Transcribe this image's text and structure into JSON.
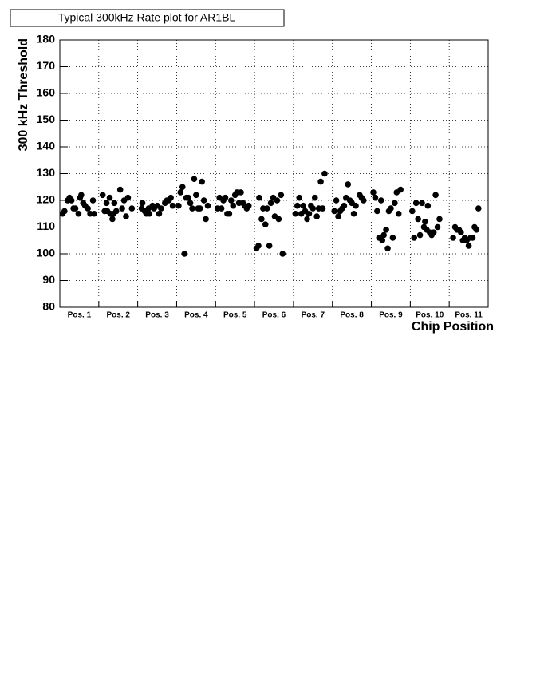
{
  "chart_data": {
    "type": "scatter",
    "title": "Typical 300kHz Rate plot for AR1BL",
    "x_label": "Chip Position",
    "y_label": "300 kHz Threshold",
    "categories": [
      "Pos. 1",
      "Pos. 2",
      "Pos. 3",
      "Pos. 4",
      "Pos. 5",
      "Pos. 6",
      "Pos. 7",
      "Pos. 8",
      "Pos. 9",
      "Pos. 10",
      "Pos. 11"
    ],
    "xlim": [
      0,
      11
    ],
    "ylim": [
      80,
      180
    ],
    "yticks": [
      80,
      90,
      100,
      110,
      120,
      130,
      140,
      150,
      160,
      170,
      180
    ],
    "grid": true,
    "series": [
      {
        "color": "#000000",
        "x": [
          0.07,
          0.12,
          0.2,
          0.25,
          0.3,
          0.35,
          0.4,
          0.48,
          0.52,
          0.55,
          0.6,
          0.65,
          0.72,
          0.78,
          0.85,
          0.88,
          1.1,
          1.15,
          1.2,
          1.22,
          1.28,
          1.3,
          1.35,
          1.38,
          1.4,
          1.45,
          1.55,
          1.6,
          1.65,
          1.7,
          1.75,
          1.85,
          2.1,
          2.12,
          2.18,
          2.22,
          2.28,
          2.3,
          2.38,
          2.42,
          2.5,
          2.55,
          2.6,
          2.7,
          2.75,
          2.8,
          2.85,
          2.9,
          3.05,
          3.1,
          3.15,
          3.2,
          3.25,
          3.3,
          3.35,
          3.4,
          3.45,
          3.5,
          3.55,
          3.6,
          3.65,
          3.7,
          3.75,
          3.8,
          4.05,
          4.1,
          4.15,
          4.2,
          4.25,
          4.3,
          4.35,
          4.4,
          4.45,
          4.5,
          4.55,
          4.6,
          4.65,
          4.7,
          4.75,
          4.8,
          4.85,
          5.05,
          5.1,
          5.12,
          5.18,
          5.22,
          5.28,
          5.32,
          5.38,
          5.42,
          5.48,
          5.52,
          5.58,
          5.62,
          5.68,
          5.72,
          6.05,
          6.1,
          6.15,
          6.2,
          6.25,
          6.3,
          6.35,
          6.4,
          6.45,
          6.5,
          6.55,
          6.6,
          6.65,
          6.7,
          6.75,
          6.8,
          7.05,
          7.1,
          7.15,
          7.2,
          7.25,
          7.3,
          7.35,
          7.4,
          7.45,
          7.5,
          7.55,
          7.6,
          7.7,
          7.75,
          7.8,
          8.05,
          8.1,
          8.15,
          8.2,
          8.25,
          8.28,
          8.32,
          8.38,
          8.42,
          8.45,
          8.5,
          8.55,
          8.6,
          8.65,
          8.7,
          8.75,
          9.05,
          9.1,
          9.15,
          9.2,
          9.25,
          9.3,
          9.35,
          9.38,
          9.42,
          9.45,
          9.5,
          9.55,
          9.6,
          9.65,
          9.7,
          9.75,
          10.1,
          10.15,
          10.2,
          10.25,
          10.3,
          10.35,
          10.4,
          10.45,
          10.5,
          10.55,
          10.6,
          10.65,
          10.7,
          10.75
        ],
        "values": [
          115,
          116,
          120,
          121,
          120,
          117,
          117,
          115,
          121,
          122,
          119,
          118,
          117,
          115,
          120,
          115,
          122,
          116,
          119,
          116,
          121,
          115,
          113,
          115,
          119,
          116,
          124,
          117,
          120,
          114,
          121,
          117,
          117,
          119,
          116,
          115,
          117,
          115,
          118,
          117,
          118,
          115,
          117,
          119,
          120,
          120,
          121,
          118,
          118,
          123,
          125,
          100,
          121,
          121,
          119,
          117,
          128,
          122,
          117,
          117,
          127,
          120,
          113,
          118,
          117,
          121,
          117,
          120,
          121,
          115,
          115,
          120,
          118,
          122,
          123,
          119,
          123,
          119,
          118,
          117,
          118,
          102,
          103,
          121,
          113,
          117,
          111,
          117,
          103,
          119,
          121,
          114,
          120,
          113,
          122,
          100,
          115,
          118,
          121,
          115,
          118,
          116,
          113,
          115,
          118,
          117,
          121,
          114,
          117,
          127,
          117,
          130,
          116,
          120,
          114,
          116,
          117,
          118,
          121,
          126,
          120,
          119,
          115,
          118,
          122,
          121,
          120,
          123,
          121,
          116,
          106,
          120,
          105,
          107,
          109,
          102,
          116,
          117,
          106,
          119,
          123,
          115,
          124,
          116,
          106,
          119,
          113,
          107,
          119,
          110,
          112,
          109,
          118,
          108,
          107,
          108,
          122,
          110,
          113,
          106,
          110,
          109,
          109,
          108,
          105,
          106,
          105,
          103,
          106,
          106,
          110,
          109,
          117
        ]
      }
    ]
  }
}
